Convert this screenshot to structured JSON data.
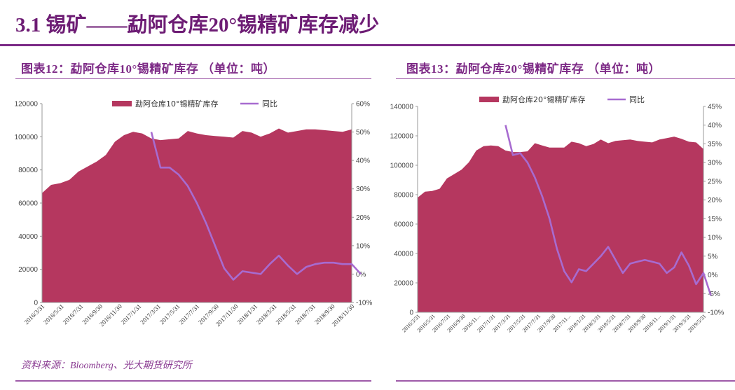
{
  "page": {
    "title": "3.1 锡矿——勐阿仓库20°锡精矿库存减少",
    "source": "资料来源：Bloomberg、光大期货研究所"
  },
  "colors": {
    "area": "#b5375f",
    "line": "#a76bd0",
    "title": "#6d1c74"
  },
  "chart_data": [
    {
      "type": "area",
      "figure_title": "图表12：勐阿仓库10°锡精矿库存 （单位：吨）",
      "legend": [
        "勐阿仓库10°锡精矿库存",
        "同比"
      ],
      "x_labels": [
        "2016/3/31",
        "2016/5/31",
        "2016/7/31",
        "2016/9/30",
        "2016/11/30",
        "2017/1/31",
        "2017/3/31",
        "2017/5/31",
        "2017/7/31",
        "2017/9/30",
        "2017/11/30",
        "2018/1/31",
        "2018/3/31",
        "2018/5/31",
        "2018/7/31",
        "2018/9/30",
        "2018/11/30"
      ],
      "y_left": {
        "min": 0,
        "max": 120000,
        "step": 20000,
        "ticks": [
          "0",
          "20000",
          "40000",
          "60000",
          "80000",
          "100000",
          "120000"
        ]
      },
      "y_right": {
        "min": -10,
        "max": 60,
        "step": 10,
        "ticks": [
          "-10%",
          "0%",
          "10%",
          "20%",
          "30%",
          "40%",
          "50%",
          "60%"
        ]
      },
      "series": [
        {
          "name": "勐阿仓库10°锡精矿库存",
          "axis": "left",
          "kind": "area",
          "values": [
            66000,
            71000,
            72000,
            74000,
            79000,
            82000,
            85000,
            89000,
            97000,
            101000,
            103000,
            102000,
            99000,
            98000,
            98500,
            99000,
            103500,
            102000,
            101000,
            100500,
            100000,
            99500,
            103500,
            102500,
            100000,
            102000,
            105000,
            102500,
            103500,
            104500,
            104500,
            104000,
            103500,
            103000,
            104500
          ]
        },
        {
          "name": "同比",
          "axis": "right",
          "kind": "line",
          "start_index": 12,
          "values": [
            50,
            37.5,
            37.5,
            35,
            31,
            25,
            18,
            10,
            2,
            -2,
            1,
            0.5,
            0,
            3.5,
            6.5,
            3,
            0,
            2.5,
            3.5,
            4,
            4,
            3.5,
            3.5,
            0
          ]
        }
      ]
    },
    {
      "type": "area",
      "figure_title": "图表13：勐阿仓库20°锡精矿库存 （单位：吨）",
      "legend": [
        "勐阿仓库20°锡精矿库存",
        "同比"
      ],
      "x_labels": [
        "2016/3/31",
        "2016/5/31",
        "2016/7/31",
        "2016/9/30",
        "2016/11...",
        "2017/1/31",
        "2017/3/31",
        "2017/5/31",
        "2017/7/31",
        "2017/9/30",
        "2017/11...",
        "2018/1/31",
        "2018/3/31",
        "2018/5/31",
        "2018/7/31",
        "2018/9/30",
        "2018/11...",
        "2019/1/31",
        "2019/3/31",
        "2019/5/31"
      ],
      "y_left": {
        "min": 0,
        "max": 140000,
        "step": 20000,
        "ticks": [
          "0",
          "20000",
          "40000",
          "60000",
          "80000",
          "100000",
          "120000",
          "140000"
        ]
      },
      "y_right": {
        "min": -10,
        "max": 45,
        "step": 5,
        "ticks": [
          "-10%",
          "-5%",
          "0%",
          "5%",
          "10%",
          "15%",
          "20%",
          "25%",
          "30%",
          "35%",
          "40%",
          "45%"
        ]
      },
      "series": [
        {
          "name": "勐阿仓库20°锡精矿库存",
          "axis": "left",
          "kind": "area",
          "values": [
            78000,
            82000,
            82500,
            84000,
            91000,
            94000,
            97000,
            102000,
            110000,
            113000,
            113500,
            113000,
            110000,
            109000,
            109000,
            109500,
            115000,
            113500,
            112000,
            112000,
            112000,
            116000,
            115000,
            113000,
            114500,
            117500,
            115000,
            116500,
            117000,
            117500,
            116500,
            116000,
            115500,
            117500,
            118500,
            119500,
            118000,
            116000,
            115500,
            111000
          ]
        },
        {
          "name": "同比",
          "axis": "right",
          "kind": "line",
          "start_index": 12,
          "values": [
            40,
            32,
            32.5,
            30,
            26,
            21,
            15,
            7,
            1,
            -2,
            1.5,
            1,
            3,
            5,
            7.5,
            4,
            0.5,
            3,
            3.5,
            4,
            3.5,
            3,
            0.5,
            2,
            6,
            2.5,
            -2.5,
            0.5,
            -5.5
          ]
        }
      ]
    }
  ]
}
